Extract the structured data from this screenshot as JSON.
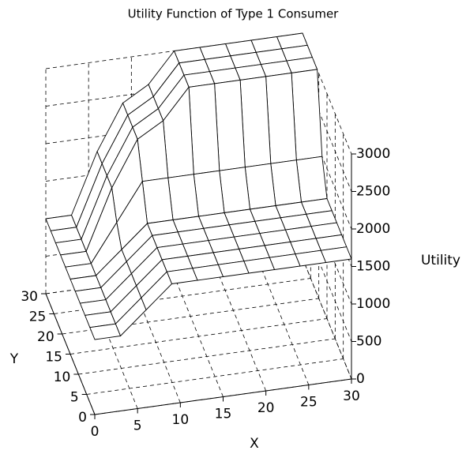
{
  "chart_data": {
    "type": "surface",
    "title": "Utility Function of Type 1 Consumer",
    "xlabel": "X",
    "ylabel": "Y",
    "zlabel": "Utility",
    "x": [
      0,
      3,
      6,
      9,
      12,
      15,
      18,
      21,
      24,
      27,
      30
    ],
    "y": [
      0,
      3,
      6,
      9,
      12,
      15,
      18,
      21,
      24,
      27,
      30
    ],
    "z": [
      [
        1000,
        1000,
        1300,
        1600,
        1600,
        1600,
        1600,
        1600,
        1600,
        1600,
        1600
      ],
      [
        1000,
        1000,
        1300,
        1600,
        1600,
        1600,
        1600,
        1600,
        1600,
        1600,
        1600
      ],
      [
        1000,
        1000,
        1300,
        1600,
        1600,
        1600,
        1600,
        1600,
        1600,
        1600,
        1600
      ],
      [
        1000,
        1000,
        1300,
        1600,
        1600,
        1600,
        1600,
        1600,
        1600,
        1600,
        1600
      ],
      [
        1000,
        1000,
        1300,
        1600,
        1600,
        1600,
        1600,
        1600,
        1600,
        1600,
        1600
      ],
      [
        1000,
        1000,
        1300,
        1600,
        1600,
        1600,
        1600,
        1600,
        1600,
        1600,
        1600
      ],
      [
        1000,
        1000,
        1500,
        2000,
        2000,
        2000,
        2000,
        2000,
        2000,
        2000,
        2000
      ],
      [
        1000,
        1000,
        1800,
        2400,
        2600,
        3000,
        3000,
        3000,
        3000,
        3000,
        3000
      ],
      [
        1000,
        1000,
        1800,
        2400,
        2600,
        3000,
        3000,
        3000,
        3000,
        3000,
        3000
      ],
      [
        1000,
        1000,
        1800,
        2400,
        2600,
        3000,
        3000,
        3000,
        3000,
        3000,
        3000
      ],
      [
        1000,
        1000,
        1800,
        2400,
        2600,
        3000,
        3000,
        3000,
        3000,
        3000,
        3000
      ]
    ],
    "xlim": [
      0,
      30
    ],
    "ylim": [
      0,
      30
    ],
    "zlim": [
      0,
      3000
    ],
    "xticks": [
      0,
      5,
      10,
      15,
      20,
      25,
      30
    ],
    "yticks": [
      0,
      5,
      10,
      15,
      20,
      25,
      30
    ],
    "zticks": [
      0,
      500,
      1000,
      1500,
      2000,
      2500,
      3000
    ],
    "grid": true,
    "color": "#ffffff"
  }
}
